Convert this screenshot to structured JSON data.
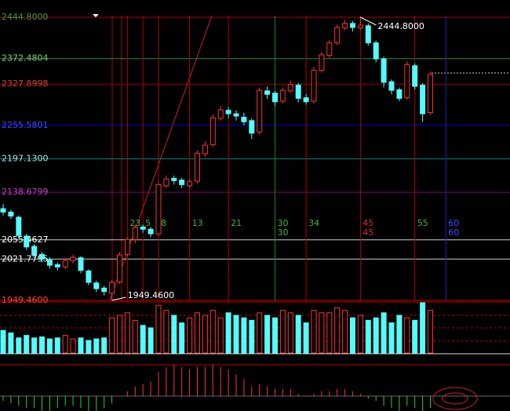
{
  "chart_data": {
    "type": "candlestick",
    "ylim": [
      1933,
      2475
    ],
    "yticks": [
      {
        "value": 2444.8,
        "label": "2444.8000"
      },
      {
        "value": 2372.4804,
        "label": "2372.4804"
      },
      {
        "value": 2327.8998,
        "label": "2327.8998"
      },
      {
        "value": 2255.5801,
        "label": "2255.5801"
      },
      {
        "value": 2197.13,
        "label": "2197.1300"
      },
      {
        "value": 2138.6799,
        "label": "2138.6799"
      },
      {
        "value": 2055.4627,
        "label": "2055.4627"
      },
      {
        "value": 2021.7795,
        "label": "2021.7795"
      },
      {
        "value": 1949.46,
        "label": "1949.4600"
      }
    ],
    "level_colors": [
      "#b00000",
      "#2e8b2e",
      "#a00000",
      "#0000e0",
      "#008080",
      "#800080",
      "#cccccc",
      "#cccccc",
      "#d00000"
    ],
    "label_colors": [
      "#3c9a3c",
      "#7ed07e",
      "#d04040",
      "#3050ff",
      "#b0e0e0",
      "#c040c0",
      "#ffffff",
      "#ffffff",
      "#ff4040"
    ],
    "up_color": "#ff3232",
    "down_color": "#54fcfc",
    "open": [
      2110,
      2104,
      2095,
      2062,
      2044,
      2030,
      2020,
      2012,
      2008,
      2019,
      2024,
      2001,
      1980,
      1971,
      1962,
      1982,
      2030,
      2056,
      2078,
      2074,
      2066,
      2150,
      2163,
      2160,
      2150,
      2158,
      2206,
      2222,
      2268,
      2282,
      2276,
      2270,
      2264,
      2244,
      2316,
      2312,
      2298,
      2316,
      2326,
      2304,
      2298,
      2352,
      2378,
      2400,
      2426,
      2434,
      2426,
      2430,
      2400,
      2372,
      2332,
      2318,
      2304,
      2360,
      2326,
      2278
    ],
    "high": [
      2118,
      2108,
      2098,
      2066,
      2048,
      2034,
      2025,
      2016,
      2024,
      2030,
      2027,
      2004,
      1984,
      1975,
      1985,
      2034,
      2060,
      2082,
      2082,
      2078,
      2158,
      2168,
      2168,
      2164,
      2162,
      2212,
      2228,
      2275,
      2290,
      2288,
      2282,
      2278,
      2268,
      2322,
      2324,
      2316,
      2322,
      2334,
      2330,
      2310,
      2358,
      2384,
      2405,
      2432,
      2440,
      2438,
      2444.8,
      2434,
      2404,
      2376,
      2336,
      2322,
      2368,
      2364,
      2330,
      2350
    ],
    "low": [
      2098,
      2092,
      2058,
      2038,
      2024,
      2016,
      2005,
      2002,
      2004,
      2014,
      1997,
      1976,
      1964,
      1958,
      1949.46,
      1978,
      2026,
      2050,
      2068,
      2060,
      2062,
      2146,
      2152,
      2146,
      2146,
      2154,
      2200,
      2218,
      2264,
      2268,
      2264,
      2256,
      2232,
      2240,
      2302,
      2290,
      2294,
      2312,
      2296,
      2292,
      2294,
      2348,
      2374,
      2396,
      2422,
      2420,
      2422,
      2395,
      2366,
      2322,
      2310,
      2298,
      2300,
      2318,
      2262,
      2274
    ],
    "close": [
      2104,
      2097,
      2063,
      2043,
      2029,
      2022,
      2011,
      2008,
      2019,
      2025,
      2002,
      1981,
      1970,
      1965,
      1981,
      2029,
      2056,
      2077,
      2074,
      2066,
      2152,
      2162,
      2159,
      2152,
      2157,
      2207,
      2221,
      2269,
      2283,
      2276,
      2272,
      2262,
      2242,
      2317,
      2310,
      2297,
      2317,
      2327,
      2303,
      2297,
      2352,
      2379,
      2400,
      2427,
      2434,
      2427,
      2431,
      2400,
      2372,
      2331,
      2317,
      2303,
      2362,
      2324,
      2276,
      2345
    ],
    "volume": [
      45,
      40,
      30,
      35,
      30,
      32,
      28,
      30,
      35,
      28,
      30,
      25,
      28,
      30,
      70,
      75,
      80,
      65,
      55,
      50,
      95,
      85,
      75,
      60,
      70,
      80,
      75,
      85,
      70,
      80,
      75,
      70,
      65,
      80,
      75,
      70,
      85,
      80,
      75,
      60,
      85,
      80,
      80,
      90,
      85,
      70,
      75,
      65,
      70,
      80,
      60,
      75,
      70,
      65,
      100,
      85
    ],
    "macd": [
      -2,
      -3,
      -4,
      -5,
      -5,
      -6,
      -6,
      -5,
      -4,
      -4,
      -5,
      -6,
      -6,
      -5,
      -3,
      0,
      2,
      4,
      5,
      6,
      10,
      12,
      13,
      12,
      11,
      12,
      12,
      13,
      12,
      11,
      9,
      7,
      4,
      5,
      4,
      3,
      3,
      3,
      1,
      0,
      1,
      2,
      2,
      3,
      3,
      2,
      1,
      -1,
      -2,
      -4,
      -5,
      -6,
      -4,
      -5,
      -7,
      -5
    ],
    "cycles": [
      {
        "bar": 16,
        "labels": [
          "23"
        ],
        "color": "#3cb43c"
      },
      {
        "bar": 18,
        "labels": [
          "5"
        ],
        "color": "#3cb43c"
      },
      {
        "bar": 20,
        "labels": [
          "8"
        ],
        "color": "#3cb43c"
      },
      {
        "bar": 24,
        "labels": [
          "13"
        ],
        "color": "#3cb43c"
      },
      {
        "bar": 29,
        "labels": [
          "21"
        ],
        "color": "#3cb43c"
      },
      {
        "bar": 35,
        "labels": [
          "30",
          "30"
        ],
        "color": "#3cb43c"
      },
      {
        "bar": 39,
        "labels": [
          "34"
        ],
        "color": "#3cb43c"
      },
      {
        "bar": 46,
        "labels": [
          "45",
          "45"
        ],
        "color": "#d03030"
      },
      {
        "bar": 53,
        "labels": [
          "55"
        ],
        "color": "#3cb43c"
      },
      {
        "bar": 57,
        "labels": [
          "60",
          "60"
        ],
        "color": "#3050ff"
      }
    ],
    "annotations": [
      {
        "text": "2444.8000",
        "bar": 46,
        "value": 2444.8
      },
      {
        "text": "1949.4600",
        "bar": 14,
        "value": 1949.46
      }
    ]
  }
}
